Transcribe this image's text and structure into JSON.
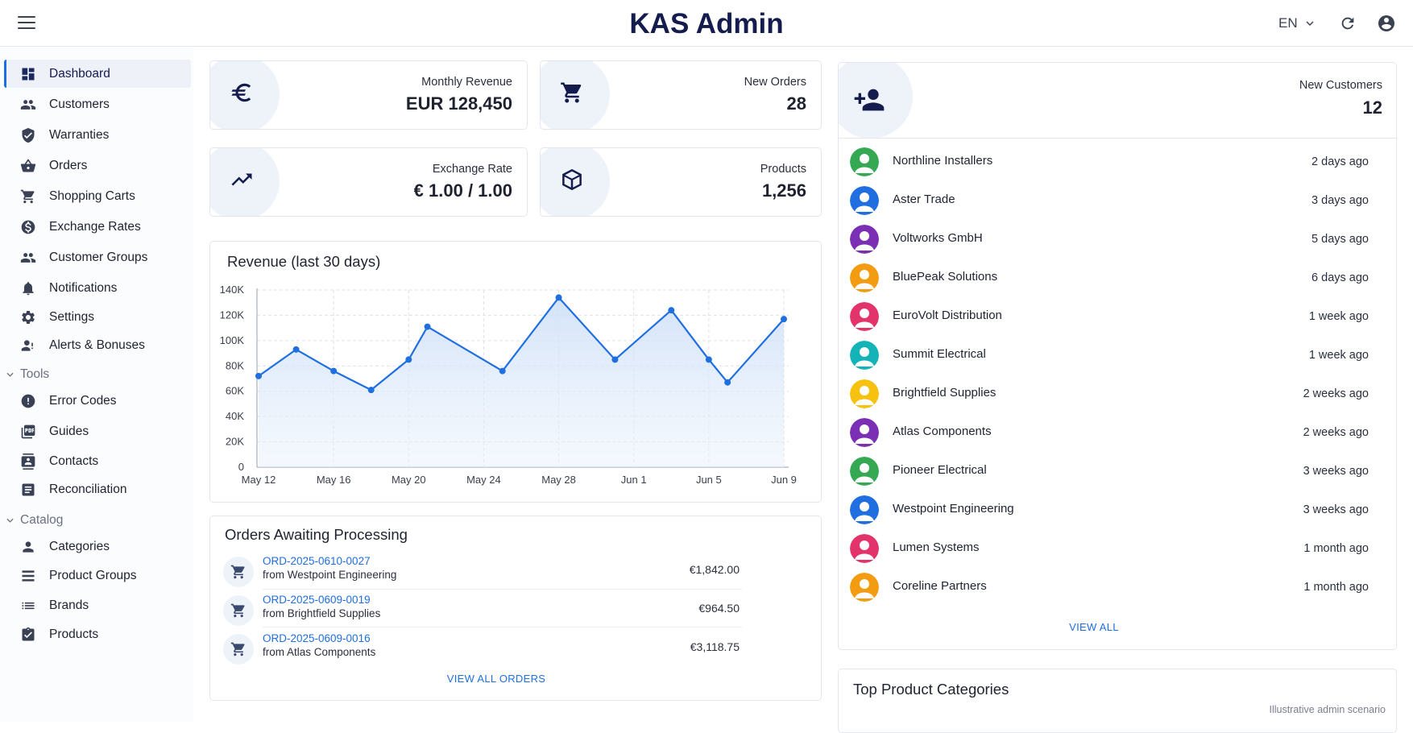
{
  "header": {
    "title": "KAS Admin",
    "language": "EN"
  },
  "sidebar": {
    "items": [
      {
        "label": "Dashboard",
        "icon": "dashboard-icon",
        "active": true
      },
      {
        "label": "Customers",
        "icon": "people-icon"
      },
      {
        "label": "Warranties",
        "icon": "shield-icon"
      },
      {
        "label": "Orders",
        "icon": "basket-icon"
      },
      {
        "label": "Shopping Carts",
        "icon": "cart-icon"
      },
      {
        "label": "Exchange Rates",
        "icon": "dollar-icon"
      },
      {
        "label": "Customer Groups",
        "icon": "group-icon"
      },
      {
        "label": "Notifications",
        "icon": "bell-icon"
      },
      {
        "label": "Settings",
        "icon": "gear-icon"
      },
      {
        "label": "Alerts & Bonuses",
        "icon": "person-alert-icon"
      }
    ],
    "tools_label": "Tools",
    "tools": [
      {
        "label": "Error Codes",
        "icon": "error-icon"
      },
      {
        "label": "Guides",
        "icon": "pdf-icon"
      },
      {
        "label": "Contacts",
        "icon": "contacts-icon"
      },
      {
        "label": "Reconciliation",
        "icon": "document-icon"
      }
    ],
    "catalog_label": "Catalog",
    "catalog": [
      {
        "label": "Categories",
        "icon": "categories-icon"
      },
      {
        "label": "Product Groups",
        "icon": "product-groups-icon"
      },
      {
        "label": "Brands",
        "icon": "list-icon"
      },
      {
        "label": "Products",
        "icon": "clipboard-check-icon"
      }
    ]
  },
  "stats": {
    "monthly_revenue": {
      "label": "Monthly Revenue",
      "value": "EUR 128,450",
      "icon": "euro-icon"
    },
    "new_orders": {
      "label": "New Orders",
      "value": "28",
      "icon": "cart-icon"
    },
    "exchange_rate": {
      "label": "Exchange Rate",
      "value": "€ 1.00 / 1.00",
      "icon": "trending-up-icon"
    },
    "products": {
      "label": "Products",
      "value": "1,256",
      "icon": "box-icon"
    },
    "new_customers": {
      "label": "New Customers",
      "value": "12",
      "icon": "person-add-icon"
    }
  },
  "revenue_chart": {
    "title": "Revenue (last 30 days)"
  },
  "chart_data": {
    "type": "line",
    "title": "Revenue (last 30 days)",
    "xlabel": "",
    "ylabel": "",
    "x_tick_labels": [
      "May 12",
      "May 16",
      "May 20",
      "May 24",
      "May 28",
      "Jun 1",
      "Jun 5",
      "Jun 9"
    ],
    "y_tick_labels": [
      "0",
      "20K",
      "40K",
      "60K",
      "80K",
      "100K",
      "120K",
      "140K"
    ],
    "ylim": [
      0,
      140000
    ],
    "grid": true,
    "area_fill": true,
    "x": [
      "May 12",
      "May 14",
      "May 16",
      "May 18",
      "May 20",
      "May 21",
      "May 25",
      "May 28",
      "May 31",
      "Jun 3",
      "Jun 5",
      "Jun 6",
      "Jun 9"
    ],
    "values": [
      72000,
      93000,
      76000,
      61000,
      85000,
      111000,
      76000,
      134000,
      85000,
      124000,
      85000,
      67000,
      117000
    ],
    "color": "#1f6fe0"
  },
  "orders": {
    "title": "Orders Awaiting Processing",
    "rows": [
      {
        "id": "ORD-2025-0610-0027",
        "from": "from Westpoint Engineering",
        "amount": "€1,842.00"
      },
      {
        "id": "ORD-2025-0609-0019",
        "from": "from Brightfield Supplies",
        "amount": "€964.50"
      },
      {
        "id": "ORD-2025-0609-0016",
        "from": "from Atlas Components",
        "amount": "€3,118.75"
      }
    ],
    "view_all": "VIEW ALL ORDERS"
  },
  "customers": {
    "rows": [
      {
        "name": "Northline Installers",
        "time": "2 days ago",
        "color": "#34a853"
      },
      {
        "name": "Aster Trade",
        "time": "3 days ago",
        "color": "#1f6fe0"
      },
      {
        "name": "Voltworks GmbH",
        "time": "5 days ago",
        "color": "#7b2fb5"
      },
      {
        "name": "BluePeak Solutions",
        "time": "6 days ago",
        "color": "#f39c12"
      },
      {
        "name": "EuroVolt Distribution",
        "time": "1 week ago",
        "color": "#e2336b"
      },
      {
        "name": "Summit Electrical",
        "time": "1 week ago",
        "color": "#14b3b8"
      },
      {
        "name": "Brightfield Supplies",
        "time": "2 weeks ago",
        "color": "#f6c10f"
      },
      {
        "name": "Atlas Components",
        "time": "2 weeks ago",
        "color": "#7b2fb5"
      },
      {
        "name": "Pioneer Electrical",
        "time": "3 weeks ago",
        "color": "#34a853"
      },
      {
        "name": "Westpoint Engineering",
        "time": "3 weeks ago",
        "color": "#1f6fe0"
      },
      {
        "name": "Lumen Systems",
        "time": "1 month ago",
        "color": "#e2336b"
      },
      {
        "name": "Coreline Partners",
        "time": "1 month ago",
        "color": "#f39c12"
      }
    ],
    "view_all": "VIEW ALL"
  },
  "top_categories": {
    "title": "Top Product Categories"
  },
  "footer_note": "Illustrative admin scenario"
}
